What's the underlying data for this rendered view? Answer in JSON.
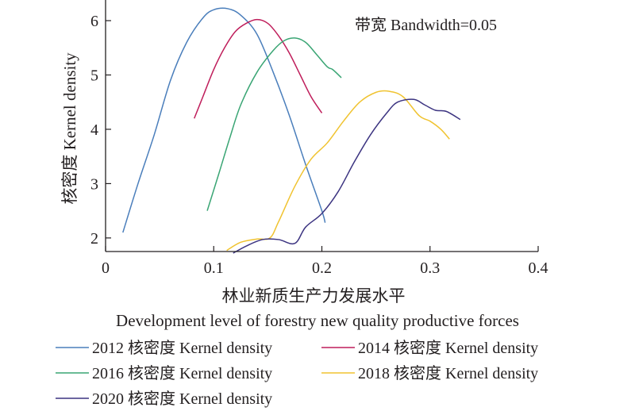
{
  "chart_data": {
    "type": "line",
    "annotation": "带宽 Bandwidth=0.05",
    "xlabel_cn": "林业新质生产力发展水平",
    "xlabel_en": "Development level of forestry new quality productive forces",
    "ylabel": "核密度 Kernel density",
    "xlim": [
      0,
      0.4
    ],
    "ylim": [
      1.75,
      6.38
    ],
    "xticks": [
      0,
      0.1,
      0.2,
      0.3,
      0.4
    ],
    "xtick_labels": [
      "0",
      "0.1",
      "0.2",
      "0.3",
      "0.4"
    ],
    "yticks": [
      2,
      3,
      4,
      5,
      6
    ],
    "ytick_labels": [
      "2",
      "3",
      "4",
      "5",
      "6"
    ],
    "grid": false,
    "legend_position": "bottom",
    "series": [
      {
        "name": "2012 核密度 Kernel density",
        "color": "#4a7ebb",
        "x": [
          0.016,
          0.03,
          0.045,
          0.06,
          0.075,
          0.09,
          0.1,
          0.113,
          0.125,
          0.14,
          0.155,
          0.17,
          0.185,
          0.2,
          0.203
        ],
        "y": [
          2.1,
          3.0,
          3.9,
          4.9,
          5.6,
          6.05,
          6.2,
          6.22,
          6.1,
          5.75,
          5.05,
          4.25,
          3.35,
          2.5,
          2.28
        ]
      },
      {
        "name": "2014 核密度 Kernel density",
        "color": "#bf1e5b",
        "x": [
          0.082,
          0.09,
          0.1,
          0.11,
          0.12,
          0.13,
          0.14,
          0.15,
          0.16,
          0.17,
          0.18,
          0.19,
          0.2
        ],
        "y": [
          4.2,
          4.6,
          5.1,
          5.5,
          5.8,
          5.95,
          6.02,
          5.95,
          5.72,
          5.4,
          5.0,
          4.6,
          4.3
        ]
      },
      {
        "name": "2016 核密度 Kernel density",
        "color": "#3aa574",
        "x": [
          0.094,
          0.105,
          0.115,
          0.125,
          0.14,
          0.155,
          0.165,
          0.175,
          0.185,
          0.195,
          0.205,
          0.21,
          0.218
        ],
        "y": [
          2.5,
          3.2,
          3.85,
          4.45,
          5.05,
          5.45,
          5.63,
          5.68,
          5.6,
          5.38,
          5.15,
          5.1,
          4.95
        ]
      },
      {
        "name": "2018 核密度 Kernel density",
        "color": "#f0c330",
        "x": [
          0.112,
          0.125,
          0.14,
          0.152,
          0.16,
          0.175,
          0.19,
          0.205,
          0.22,
          0.235,
          0.25,
          0.262,
          0.275,
          0.29,
          0.3,
          0.31,
          0.318
        ],
        "y": [
          1.77,
          1.92,
          1.98,
          2.0,
          2.3,
          2.95,
          3.45,
          3.75,
          4.15,
          4.5,
          4.68,
          4.7,
          4.6,
          4.25,
          4.15,
          4.0,
          3.82
        ]
      },
      {
        "name": "2020 核密度 Kernel density",
        "color": "#3c3481",
        "x": [
          0.118,
          0.13,
          0.145,
          0.16,
          0.175,
          0.185,
          0.2,
          0.215,
          0.23,
          0.245,
          0.26,
          0.27,
          0.285,
          0.295,
          0.305,
          0.315,
          0.328
        ],
        "y": [
          1.72,
          1.85,
          1.97,
          1.97,
          1.9,
          2.2,
          2.45,
          2.85,
          3.4,
          3.9,
          4.3,
          4.5,
          4.55,
          4.45,
          4.35,
          4.33,
          4.18
        ]
      }
    ]
  }
}
